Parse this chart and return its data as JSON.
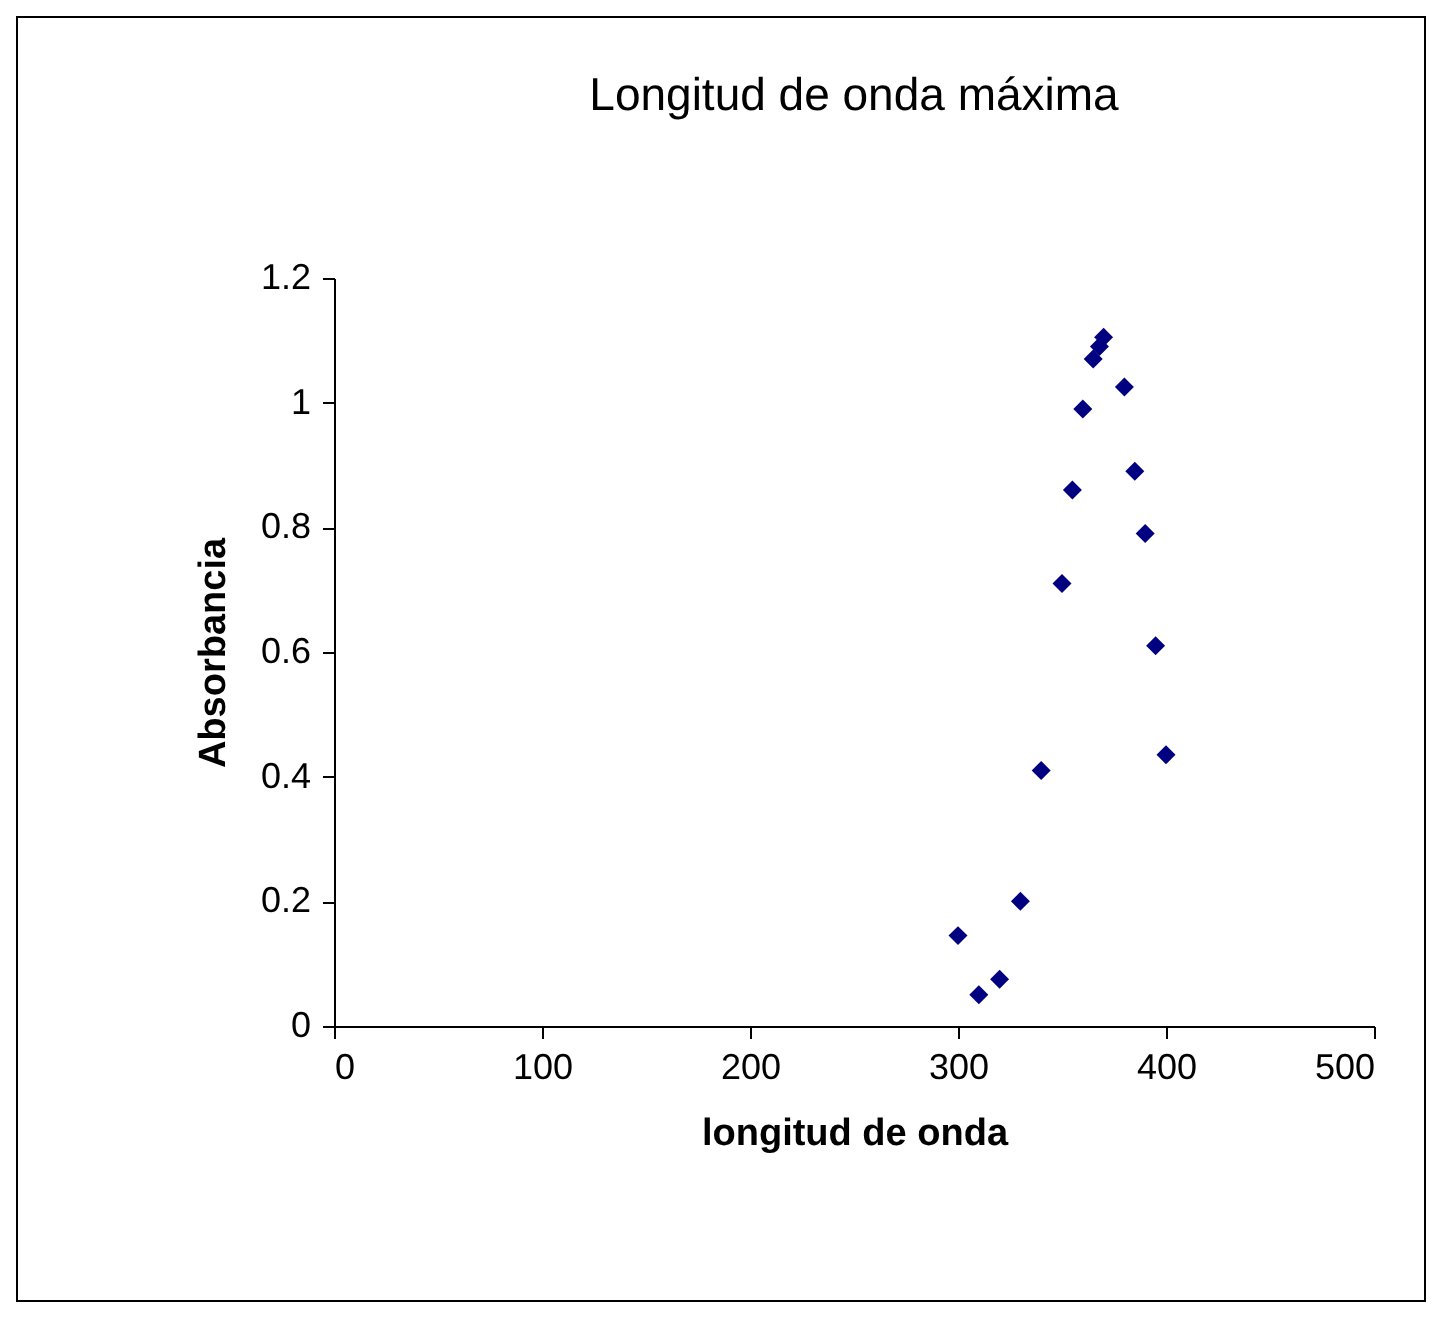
{
  "chart_data": {
    "type": "scatter",
    "title": "Longitud de onda máxima",
    "xlabel": "longitud de onda",
    "ylabel": "Absorbancia",
    "x": [
      300,
      310,
      320,
      330,
      340,
      350,
      355,
      360,
      365,
      368,
      370,
      380,
      385,
      390,
      395,
      400
    ],
    "series": [
      {
        "color": "#000080",
        "values": [
          0.145,
          0.05,
          0.075,
          0.2,
          0.41,
          0.71,
          0.86,
          0.99,
          1.07,
          1.09,
          1.105,
          1.025,
          0.89,
          0.79,
          0.61,
          0.435
        ]
      }
    ],
    "xlim": [
      0,
      500
    ],
    "xticks": [
      0,
      100,
      200,
      300,
      400,
      500
    ],
    "ylim": [
      0,
      1.2
    ],
    "yticks": [
      0,
      0.2,
      0.4,
      0.6,
      0.8,
      1,
      1.2
    ],
    "grid": false,
    "legend": false,
    "marker": "diamond"
  }
}
